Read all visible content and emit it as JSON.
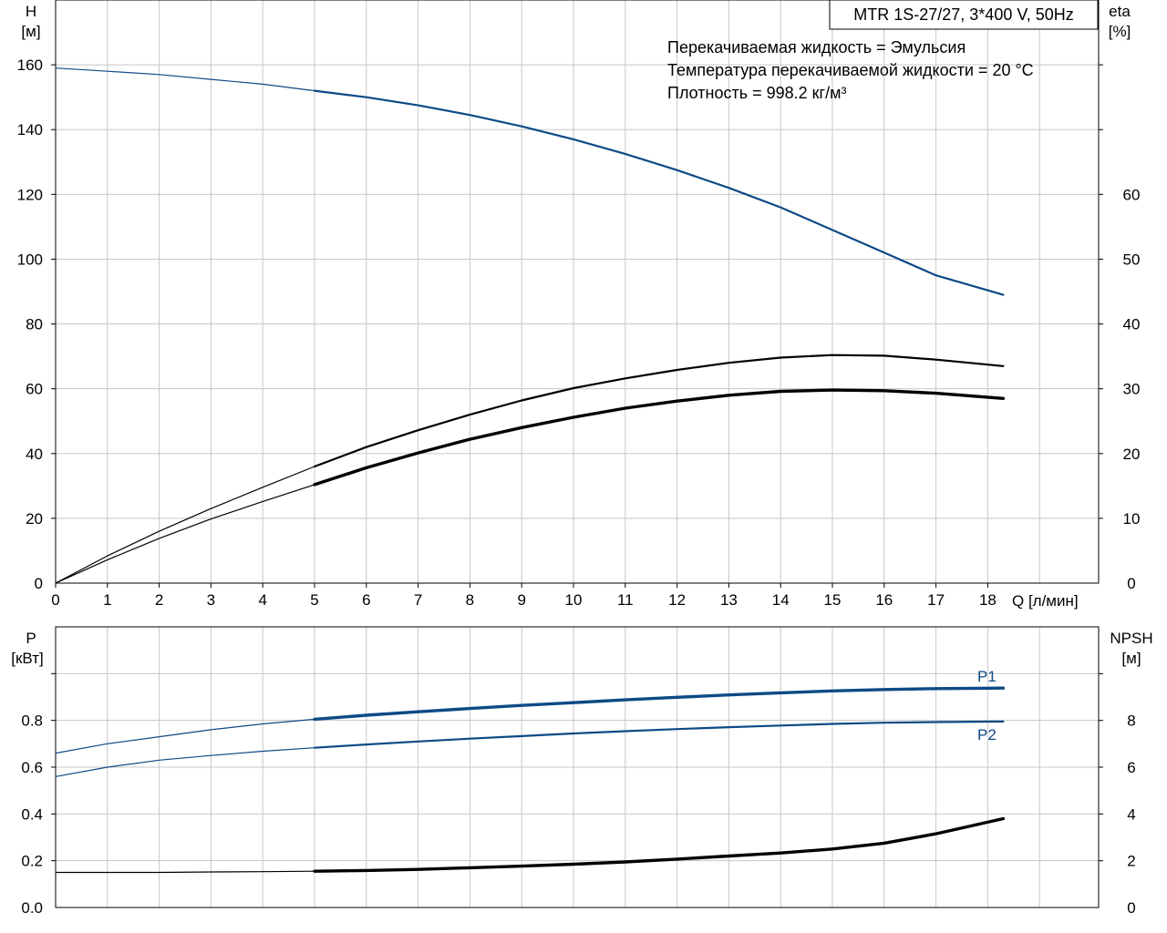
{
  "title_box": "MTR 1S-27/27, 3*400 V, 50Hz",
  "info_lines": [
    "Перекачиваемая жидкость = Эмульсия",
    "Температура перекачиваемой жидкости = 20 °C",
    "Плотность = 998.2 кг/м³"
  ],
  "colors": {
    "blue": "#0d4a86",
    "black": "#000000",
    "grid": "#c8c8c8"
  },
  "chart_data": [
    {
      "type": "line",
      "xlabel": "Q [л/мин]",
      "ylabel_left": [
        "H",
        "[м]"
      ],
      "ylabel_right": [
        "eta",
        "[%]"
      ],
      "xlim": [
        0,
        20
      ],
      "x_ticks": [
        0,
        1,
        2,
        3,
        4,
        5,
        6,
        7,
        8,
        9,
        10,
        11,
        12,
        13,
        14,
        15,
        16,
        17,
        18
      ],
      "ylim_left": [
        0,
        180
      ],
      "y_ticks_left": [
        0,
        20,
        40,
        60,
        80,
        100,
        120,
        140,
        160
      ],
      "ylim_right": [
        0,
        90
      ],
      "y_ticks_right": [
        0,
        10,
        20,
        30,
        40,
        50,
        60
      ],
      "grid": true,
      "thin_until_x": 5,
      "series": [
        {
          "axis": "left",
          "color": "blue",
          "x": [
            0,
            1,
            2,
            3,
            4,
            5,
            6,
            7,
            8,
            9,
            10,
            11,
            12,
            13,
            14,
            15,
            16,
            17,
            18.3
          ],
          "y": [
            159,
            158,
            157,
            155.5,
            154,
            152,
            150,
            147.5,
            144.5,
            141,
            137,
            132.5,
            127.5,
            122,
            116,
            109,
            102,
            95,
            89
          ]
        },
        {
          "axis": "right",
          "color": "black",
          "x": [
            0,
            1,
            2,
            3,
            4,
            5,
            6,
            7,
            8,
            9,
            10,
            11,
            12,
            13,
            14,
            15,
            16,
            17,
            18.3
          ],
          "y": [
            0,
            4.2,
            8,
            11.5,
            14.8,
            18,
            21,
            23.6,
            26,
            28.2,
            30.1,
            31.6,
            32.9,
            34,
            34.8,
            35.2,
            35.1,
            34.5,
            33.5
          ]
        },
        {
          "axis": "right",
          "color": "black",
          "bold": true,
          "x": [
            0,
            1,
            2,
            3,
            4,
            5,
            6,
            7,
            8,
            9,
            10,
            11,
            12,
            13,
            14,
            15,
            16,
            17,
            18.3
          ],
          "y": [
            0,
            3.6,
            6.9,
            9.9,
            12.6,
            15.2,
            17.8,
            20.1,
            22.2,
            24,
            25.6,
            27,
            28.1,
            29,
            29.6,
            29.8,
            29.7,
            29.3,
            28.5
          ]
        }
      ]
    },
    {
      "type": "line",
      "ylabel_left": [
        "P",
        "[кВт]"
      ],
      "ylabel_right": [
        "NPSH",
        "[м]"
      ],
      "xlim": [
        0,
        20
      ],
      "x_ticks": [
        0,
        1,
        2,
        3,
        4,
        5,
        6,
        7,
        8,
        9,
        10,
        11,
        12,
        13,
        14,
        15,
        16,
        17,
        18
      ],
      "ylim_left": [
        0,
        1.2
      ],
      "y_ticks_left": [
        "0.0",
        "0.2",
        "0.4",
        "0.6",
        "0.8"
      ],
      "ylim_right": [
        0,
        12
      ],
      "y_ticks_right": [
        0,
        2,
        4,
        6,
        8
      ],
      "grid": true,
      "thin_until_x": 5,
      "series": [
        {
          "name": "P1",
          "axis": "left",
          "color": "blue",
          "bold": true,
          "x": [
            0,
            1,
            2,
            3,
            4,
            5,
            6,
            7,
            8,
            9,
            10,
            11,
            12,
            13,
            14,
            15,
            16,
            17,
            18.3
          ],
          "y": [
            0.66,
            0.7,
            0.73,
            0.76,
            0.785,
            0.805,
            0.822,
            0.837,
            0.851,
            0.864,
            0.876,
            0.888,
            0.899,
            0.909,
            0.918,
            0.926,
            0.932,
            0.936,
            0.938
          ]
        },
        {
          "name": "P2",
          "axis": "left",
          "color": "blue",
          "x": [
            0,
            1,
            2,
            3,
            4,
            5,
            6,
            7,
            8,
            9,
            10,
            11,
            12,
            13,
            14,
            15,
            16,
            17,
            18.3
          ],
          "y": [
            0.56,
            0.6,
            0.63,
            0.65,
            0.668,
            0.683,
            0.697,
            0.71,
            0.722,
            0.733,
            0.744,
            0.754,
            0.763,
            0.771,
            0.778,
            0.785,
            0.79,
            0.793,
            0.795
          ]
        },
        {
          "axis": "right",
          "color": "black",
          "bold": true,
          "x": [
            0,
            1,
            2,
            3,
            4,
            5,
            6,
            7,
            8,
            9,
            10,
            11,
            12,
            13,
            14,
            15,
            16,
            17,
            18.3
          ],
          "y": [
            1.5,
            1.5,
            1.5,
            1.52,
            1.53,
            1.55,
            1.58,
            1.63,
            1.7,
            1.77,
            1.85,
            1.95,
            2.07,
            2.2,
            2.33,
            2.5,
            2.75,
            3.15,
            3.8
          ]
        }
      ]
    }
  ]
}
